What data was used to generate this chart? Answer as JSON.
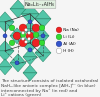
{
  "background": "#f5f5f5",
  "title": "NaₓLi₁₋ₓAlH₆",
  "title_box_color": "#e0f0e0",
  "title_box_edge": "#aaaaaa",
  "title_color": "#222222",
  "polyhedra_color": "#40c0a0",
  "polyhedra_edge_color": "#208060",
  "polyhedra_alpha": 0.9,
  "na_color": "#ee2222",
  "na_edge": "#aa0000",
  "na_r": 3.8,
  "li_color": "#33dd33",
  "li_edge": "#118811",
  "li_r": 2.8,
  "al_color": "#3355cc",
  "al_edge": "#112288",
  "al_r": 2.0,
  "h_color": "#ffffff",
  "h_edge": "#888888",
  "h_r": 1.4,
  "frame_color": "#333333",
  "frame_lw": 0.5,
  "legend_items": [
    {
      "label": " Na (Na)",
      "color": "#ee2222",
      "ec": "#aa0000"
    },
    {
      "label": " Li (Li)",
      "color": "#33dd33",
      "ec": "#118811"
    },
    {
      "label": " Al (Al)",
      "color": "#3355cc",
      "ec": "#112288"
    },
    {
      "label": " H (H)",
      "color": "#ffffff",
      "ec": "#888888"
    }
  ],
  "caption_lines": [
    "The structure consists of isolated octahedral",
    "NaH₆-like anionic complex [AlH₆]³⁻ (in blue)",
    "interconnected by Na⁺ (in red) and",
    "Li⁺ cations (green)"
  ],
  "caption_fontsize": 3.2,
  "caption_color": "#444444"
}
